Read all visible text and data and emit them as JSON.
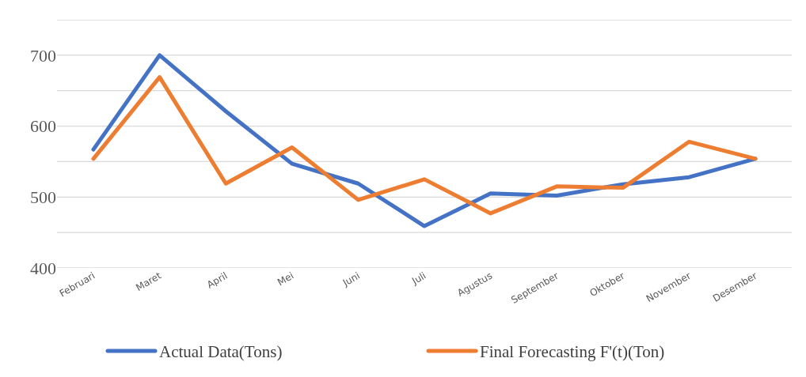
{
  "chart_data": {
    "type": "line",
    "categories": [
      "Februari",
      "Maret",
      "April",
      "Mei",
      "Juni",
      "Juli",
      "Agustus",
      "September",
      "Oktober",
      "November",
      "Desember"
    ],
    "series": [
      {
        "name": "Actual Data(Tons)",
        "color": "#4472c4",
        "values": [
          567,
          700,
          621,
          547,
          519,
          459,
          505,
          502,
          518,
          528,
          554
        ]
      },
      {
        "name": "Final Forecasting F'(t)(Ton)",
        "color": "#ed7d31",
        "values": [
          554,
          669,
          519,
          570,
          496,
          525,
          477,
          515,
          513,
          578,
          554
        ]
      }
    ],
    "ylim": [
      400,
      750
    ],
    "yticks": [
      400,
      {
        "value": 450,
        "label": null
      },
      500,
      {
        "value": 550,
        "label": null
      },
      600,
      {
        "value": 650,
        "label": null
      },
      700,
      {
        "value": 750,
        "label": null
      }
    ],
    "grid": "y",
    "legend": "bottom",
    "marker": "none",
    "line_style": "solid"
  }
}
